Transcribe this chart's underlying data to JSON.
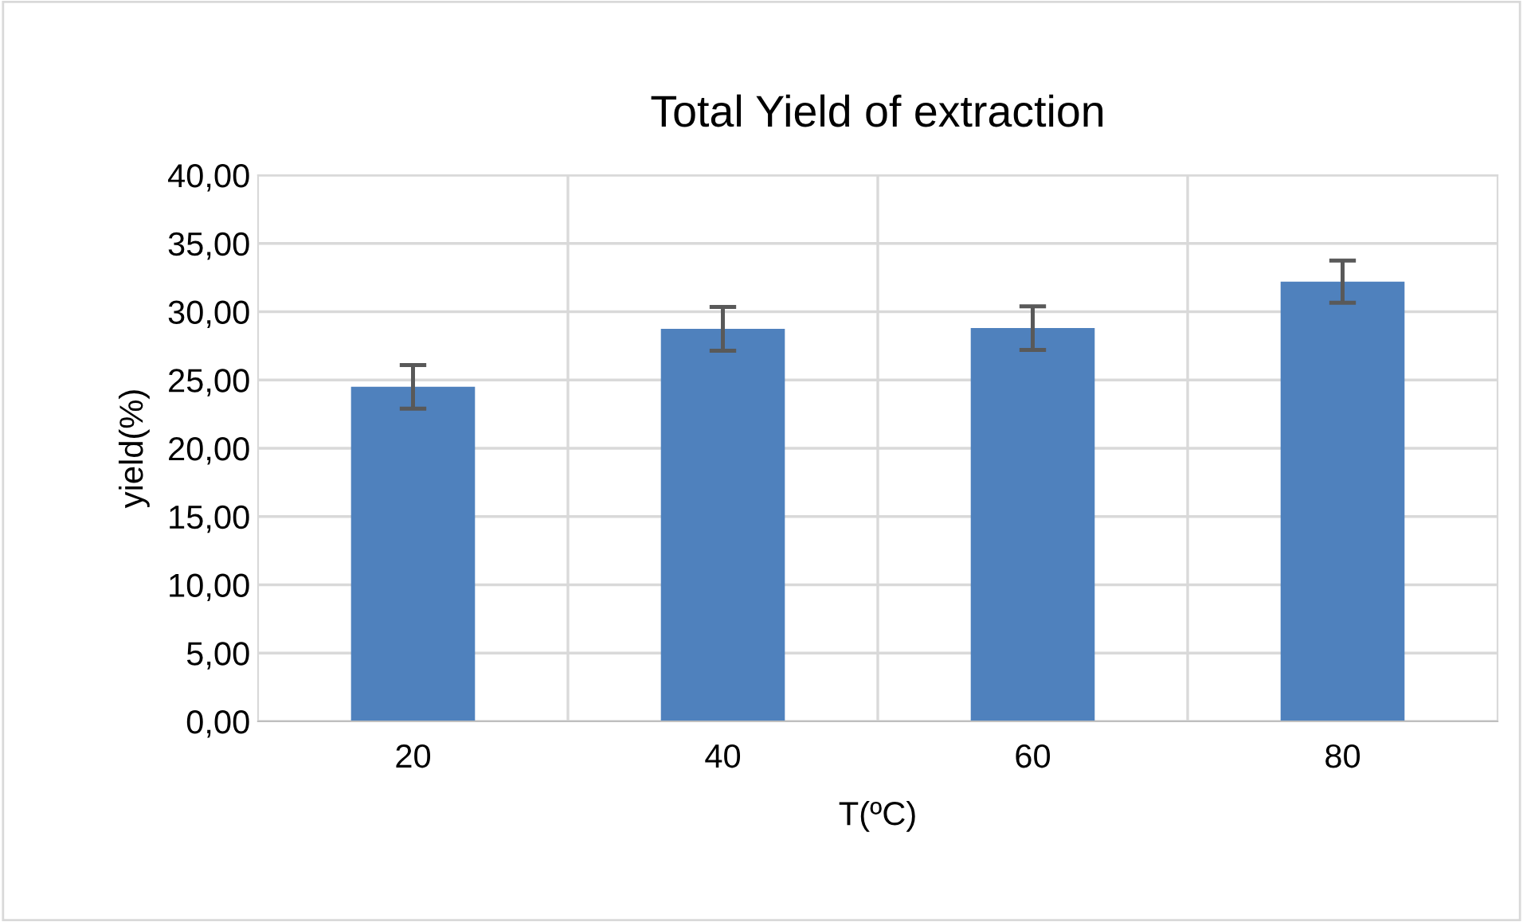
{
  "chart_data": {
    "type": "bar",
    "title": "Total Yield of extraction",
    "xlabel": "T(ºC)",
    "ylabel": "yield(%)",
    "categories": [
      "20",
      "40",
      "60",
      "80"
    ],
    "values": [
      24.5,
      28.75,
      28.8,
      32.2
    ],
    "errors": [
      1.6,
      1.6,
      1.6,
      1.55
    ],
    "color": "#4f81bd",
    "ylim": [
      0,
      40
    ],
    "yticks": [
      {
        "value": 0,
        "label": "0,00"
      },
      {
        "value": 5,
        "label": "5,00"
      },
      {
        "value": 10,
        "label": "10,00"
      },
      {
        "value": 15,
        "label": "15,00"
      },
      {
        "value": 20,
        "label": "20,00"
      },
      {
        "value": 25,
        "label": "25,00"
      },
      {
        "value": 30,
        "label": "30,00"
      },
      {
        "value": 35,
        "label": "35,00"
      },
      {
        "value": 40,
        "label": "40,00"
      }
    ],
    "grid": true
  }
}
